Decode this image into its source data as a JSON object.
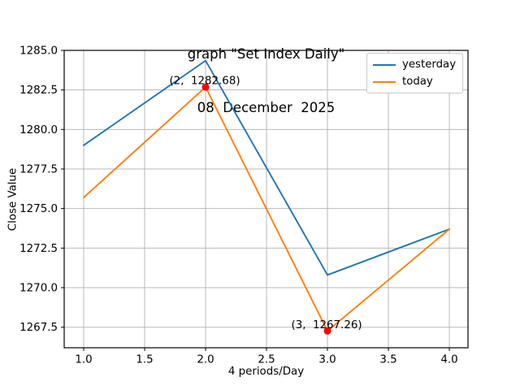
{
  "figure": {
    "title_line1": "graph \"Set Index Daily\"",
    "title_line2": "08  December  2025",
    "xlabel": "4 periods/Day",
    "ylabel": "Close Value"
  },
  "legend": {
    "position": "upper right",
    "entries": [
      {
        "label": "yesterday",
        "color": "#1f77b4"
      },
      {
        "label": "today",
        "color": "#ff7f0e"
      }
    ]
  },
  "chart_data": {
    "type": "line",
    "title": "graph \"Set Index Daily\"",
    "subtitle": "08  December  2025",
    "xlabel": "4 periods/Day",
    "ylabel": "Close Value",
    "x": [
      1,
      2,
      3,
      4
    ],
    "series": [
      {
        "name": "yesterday",
        "color": "#1f77b4",
        "values": [
          1279.0,
          1284.35,
          1270.8,
          1273.7
        ]
      },
      {
        "name": "today",
        "color": "#ff7f0e",
        "values": [
          1275.7,
          1282.68,
          1267.26,
          1273.7
        ]
      }
    ],
    "annotations": [
      {
        "text": "(2,  1282.68)",
        "x": 2,
        "y": 1282.68,
        "marker": "circle",
        "marker_color": "#ff0000"
      },
      {
        "text": "(3,  1267.26)",
        "x": 3,
        "y": 1267.26,
        "marker": "circle",
        "marker_color": "#ff0000"
      }
    ],
    "x_ticks": [
      1.0,
      1.5,
      2.0,
      2.5,
      3.0,
      3.5,
      4.0
    ],
    "y_ticks": [
      1267.5,
      1270.0,
      1272.5,
      1275.0,
      1277.5,
      1280.0,
      1282.5,
      1285.0
    ],
    "xlim": [
      0.84,
      4.153
    ],
    "ylim": [
      1266.2,
      1285.0
    ],
    "grid": true,
    "grid_color": "#b9b9b9",
    "legend_position": "upper right"
  }
}
